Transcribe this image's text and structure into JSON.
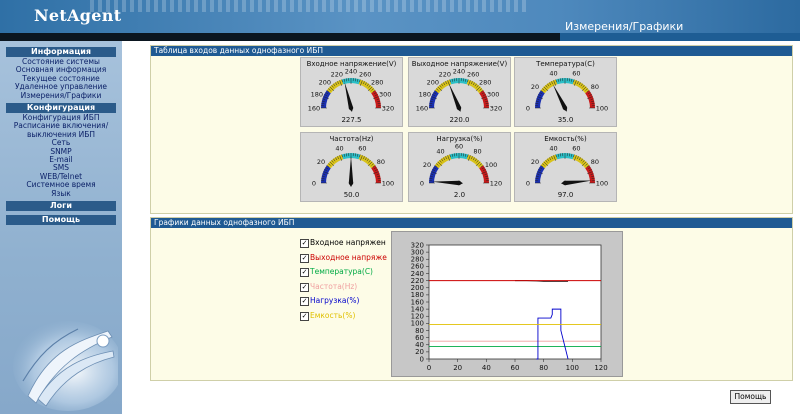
{
  "header": {
    "brand": "NetAgent",
    "page_title": "Измерения/Графики"
  },
  "sidebar": {
    "groups": [
      {
        "title": "Информация",
        "items": [
          "Состояние системы",
          "Основная информация",
          "Текущее состояние",
          "Удаленное управление",
          "Измерения/Графики"
        ]
      },
      {
        "title": "Конфигурация",
        "items": [
          "Конфигурация ИБП",
          "Расписание включения/",
          "выключения ИБП",
          "Сеть",
          "SNMP",
          "E-mail",
          "SMS",
          "WEB/Telnet",
          "Системное время",
          "Язык"
        ]
      },
      {
        "title": "Логи",
        "items": []
      },
      {
        "title": "Помощь",
        "items": []
      }
    ]
  },
  "gauges_panel": {
    "title": "Таблица входов данных однофазного ИБП",
    "gauges": [
      {
        "title": "Входное напряжение(V)",
        "value": "227.5",
        "ticks": [
          "160",
          "180",
          "200",
          "220",
          "240",
          "260",
          "280",
          "300",
          "320"
        ],
        "min": 160,
        "max": 320,
        "reading": 227.5
      },
      {
        "title": "Выходное напряжение(V)",
        "value": "220.0",
        "ticks": [
          "160",
          "180",
          "200",
          "220",
          "240",
          "260",
          "280",
          "300",
          "320"
        ],
        "min": 160,
        "max": 320,
        "reading": 220.0
      },
      {
        "title": "Температура(C)",
        "value": "35.0",
        "ticks": [
          "0",
          "20",
          "40",
          "60",
          "80",
          "100"
        ],
        "min": 0,
        "max": 100,
        "reading": 35.0
      },
      {
        "title": "Частота(Hz)",
        "value": "50.0",
        "ticks": [
          "0",
          "20",
          "40",
          "60",
          "80",
          "100"
        ],
        "min": 0,
        "max": 100,
        "reading": 50.0
      },
      {
        "title": "Нагрузка(%)",
        "value": "2.0",
        "ticks": [
          "0",
          "20",
          "40",
          "60",
          "80",
          "100",
          "120"
        ],
        "min": 0,
        "max": 120,
        "reading": 2.0
      },
      {
        "title": "Емкость(%)",
        "value": "97.0",
        "ticks": [
          "0",
          "20",
          "40",
          "60",
          "80",
          "100"
        ],
        "min": 0,
        "max": 100,
        "reading": 97.0
      }
    ]
  },
  "charts_panel": {
    "title": "Графики данных однофазного ИБП",
    "legend": [
      {
        "label": "Входное напряжен",
        "color": "#000000",
        "checked": true
      },
      {
        "label": "Выходное напряже",
        "color": "#cc0000",
        "checked": true
      },
      {
        "label": "Температура(С)",
        "color": "#00aa44",
        "checked": true
      },
      {
        "label": "Частота(Hz)",
        "color": "#f0a0a0",
        "checked": true
      },
      {
        "label": "Нагрузка(%)",
        "color": "#0000cc",
        "checked": true
      },
      {
        "label": "Емкость(%)",
        "color": "#e0c000",
        "checked": true
      }
    ]
  },
  "chart_data": {
    "type": "line",
    "x_ticks": [
      "0",
      "20",
      "40",
      "60",
      "80",
      "100",
      "120"
    ],
    "y_ticks": [
      "0",
      "20",
      "40",
      "60",
      "80",
      "100",
      "120",
      "140",
      "160",
      "180",
      "200",
      "220",
      "240",
      "260",
      "280",
      "300",
      "320"
    ],
    "xlim": [
      0,
      120
    ],
    "ylim": [
      0,
      320
    ],
    "grid": false,
    "series": [
      {
        "name": "Входное напряжен",
        "color": "#000000",
        "x": [
          60,
          68,
          75,
          80,
          85,
          90,
          97
        ],
        "y": [
          220,
          220,
          219,
          218,
          218,
          218,
          218
        ]
      },
      {
        "name": "Выходное напряже",
        "color": "#cc0000",
        "x": [
          0,
          20,
          40,
          60,
          80,
          100,
          120
        ],
        "y": [
          220,
          220,
          220,
          220,
          220,
          220,
          220
        ]
      },
      {
        "name": "Температура(С)",
        "color": "#00aa44",
        "x": [
          0,
          20,
          40,
          60,
          80,
          100,
          120
        ],
        "y": [
          35,
          35,
          35,
          35,
          35,
          35,
          35
        ]
      },
      {
        "name": "Частота(Hz)",
        "color": "#f0a0a0",
        "x": [
          0,
          20,
          40,
          60,
          80,
          100,
          120
        ],
        "y": [
          50,
          50,
          50,
          50,
          50,
          50,
          50
        ]
      },
      {
        "name": "Нагрузка(%)",
        "color": "#0000cc",
        "x": [
          75,
          76,
          76,
          85,
          86,
          86,
          91,
          92,
          92,
          97
        ],
        "y": [
          0,
          0,
          115,
          115,
          125,
          140,
          140,
          140,
          80,
          0
        ]
      },
      {
        "name": "Емкость(%)",
        "color": "#e0c000",
        "x": [
          0,
          20,
          40,
          60,
          80,
          100,
          120
        ],
        "y": [
          97,
          97,
          97,
          97,
          97,
          97,
          97
        ]
      }
    ]
  },
  "buttons": {
    "help": "Помощь"
  },
  "colors": {
    "header_bg": "#0d4d86",
    "panel_title_bg": "#1f5a93",
    "panel_bg": "#fdfce7",
    "sidebar_bg": "#97b6d4"
  }
}
